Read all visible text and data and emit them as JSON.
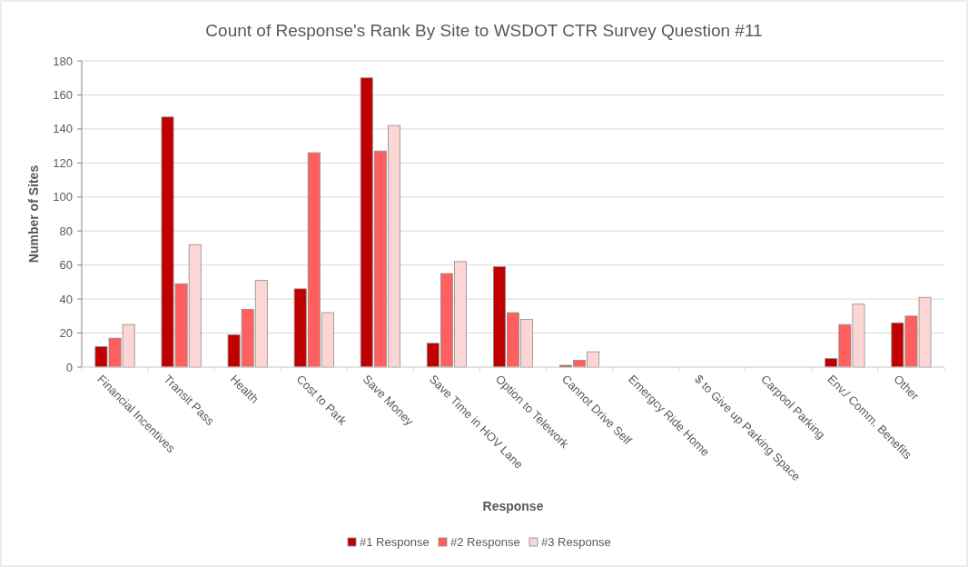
{
  "chart_data": {
    "type": "bar",
    "title": "Count of Response's Rank By Site to WSDOT CTR Survey Question #11",
    "xlabel": "Response",
    "ylabel": "Number of Sites",
    "categories": [
      "Financial Incentives",
      "Transit Pass",
      "Health",
      "Cost to Park",
      "Save Money",
      "Save Time in HOV Lane",
      "Option to Telework",
      "Cannot Drive Self",
      "Emergcy Ride Home",
      "$ to Give up Parking Space",
      "Carpool Parking",
      "Env./ Comm. Benefits",
      "Other"
    ],
    "series": [
      {
        "name": "#1 Response",
        "color": "#c00000",
        "values": [
          12,
          147,
          19,
          46,
          170,
          14,
          59,
          1,
          0,
          0,
          0,
          5,
          26
        ]
      },
      {
        "name": "#2 Response",
        "color": "#ff5f5f",
        "values": [
          17,
          49,
          34,
          126,
          127,
          55,
          32,
          4,
          0,
          0,
          0,
          25,
          30
        ]
      },
      {
        "name": "#3 Response",
        "color": "#fcd5d5",
        "values": [
          25,
          72,
          51,
          32,
          142,
          62,
          28,
          9,
          0,
          0,
          0,
          37,
          41
        ]
      }
    ],
    "ylim": [
      0,
      180
    ],
    "yticks": [
      0,
      20,
      40,
      60,
      80,
      100,
      120,
      140,
      160,
      180
    ],
    "grid": "y",
    "legend": "bottom"
  }
}
